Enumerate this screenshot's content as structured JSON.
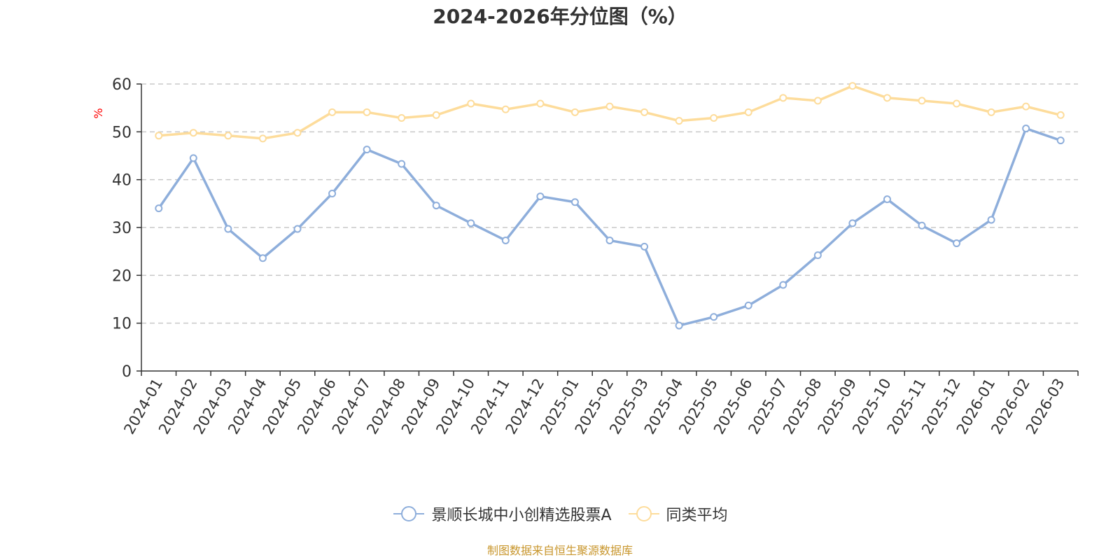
{
  "chart_data": {
    "type": "line",
    "title": "2024-2026年分位图（%）",
    "ylabel": "%",
    "xlabel": "",
    "ylim": [
      0,
      60
    ],
    "yticks": [
      0,
      10,
      20,
      30,
      40,
      50,
      60
    ],
    "grid": true,
    "legend_position": "bottom-center",
    "categories": [
      "2024-01",
      "2024-02",
      "2024-03",
      "2024-04",
      "2024-05",
      "2024-06",
      "2024-07",
      "2024-08",
      "2024-09",
      "2024-10",
      "2024-11",
      "2024-12",
      "2025-01",
      "2025-02",
      "2025-03",
      "2025-04",
      "2025-05",
      "2025-06",
      "2025-07",
      "2025-08",
      "2025-09",
      "2025-10",
      "2025-11",
      "2025-12",
      "2026-01",
      "2026-02",
      "2026-03"
    ],
    "series": [
      {
        "name": "景顺长城中小创精选股票A",
        "color": "#8eaedb",
        "values": [
          34.0,
          44.5,
          29.7,
          23.6,
          29.7,
          37.1,
          46.3,
          43.3,
          34.6,
          30.9,
          27.3,
          36.5,
          35.3,
          27.3,
          26.0,
          9.5,
          11.3,
          13.7,
          18.0,
          24.2,
          30.9,
          35.9,
          30.4,
          26.7,
          31.6,
          50.7,
          48.2
        ]
      },
      {
        "name": "同类平均",
        "color": "#fddc9b",
        "values": [
          49.2,
          49.8,
          49.2,
          48.6,
          49.8,
          54.1,
          54.1,
          52.9,
          53.5,
          55.9,
          54.7,
          55.9,
          54.1,
          55.3,
          54.1,
          52.3,
          52.9,
          54.1,
          57.1,
          56.5,
          59.6,
          57.1,
          56.5,
          55.9,
          54.1,
          55.3,
          53.5
        ]
      }
    ]
  },
  "source_note": "制图数据来自恒生聚源数据库"
}
